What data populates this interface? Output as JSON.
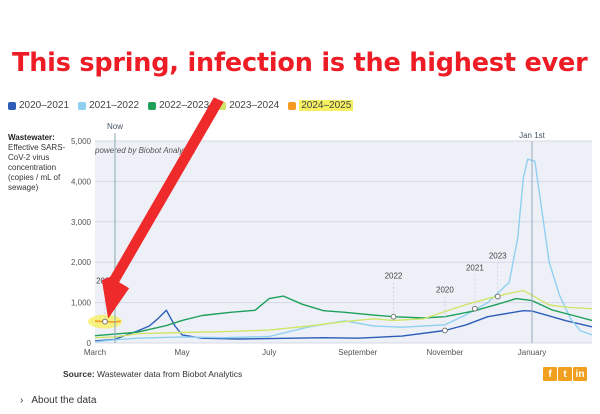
{
  "headline": "This spring, infection is the highest ever",
  "legend": [
    {
      "label": "2020–2021",
      "color": "#2e5db8"
    },
    {
      "label": "2021–2022",
      "color": "#8fd0f0"
    },
    {
      "label": "2022–2023",
      "color": "#1fa05a"
    },
    {
      "label": "2023–2024",
      "color": "#cfe66a"
    },
    {
      "label": "2024–2025",
      "color": "#f59a23"
    }
  ],
  "ylabel_title": "Wastewater:",
  "ylabel_text": "Effective SARS-CoV-2 virus concentration (copies / mL of sewage)",
  "source_label": "Source:",
  "source_text": "Wastewater data from Biobot Analytics",
  "about_link": "About the data",
  "share": {
    "facebook": "f",
    "twitter": "t",
    "linkedin": "in"
  },
  "chart_data": {
    "type": "line",
    "title": "",
    "watermark": "powered by Biobot Analytics",
    "ylabel": "Wastewater: Effective SARS-CoV-2 virus concentration (copies / mL of sewage)",
    "xlabel": "",
    "x_unit": "days since March 1",
    "x_ticks": [
      {
        "x": 0,
        "label": "March"
      },
      {
        "x": 61,
        "label": "May"
      },
      {
        "x": 122,
        "label": "July"
      },
      {
        "x": 184,
        "label": "September"
      },
      {
        "x": 245,
        "label": "November"
      },
      {
        "x": 306,
        "label": "January"
      }
    ],
    "ylim": [
      0,
      5000
    ],
    "y_ticks": [
      0,
      1000,
      2000,
      3000,
      4000,
      5000
    ],
    "xlim": [
      0,
      348
    ],
    "grid": true,
    "markers": [
      {
        "label": "Now",
        "x": 14
      },
      {
        "label": "Jan 1st",
        "x": 306
      }
    ],
    "year_labels": [
      {
        "label": "2024",
        "x": 7,
        "y": 530
      },
      {
        "label": "2022",
        "x": 209,
        "y": 650
      },
      {
        "label": "2020",
        "x": 245,
        "y": 310
      },
      {
        "label": "2021",
        "x": 266,
        "y": 850
      },
      {
        "label": "2023",
        "x": 282,
        "y": 1150
      }
    ],
    "series": [
      {
        "name": "2020–2021",
        "color": "#2e5db8",
        "points": [
          [
            0,
            50
          ],
          [
            14,
            90
          ],
          [
            22,
            200
          ],
          [
            30,
            300
          ],
          [
            38,
            420
          ],
          [
            44,
            600
          ],
          [
            50,
            810
          ],
          [
            56,
            420
          ],
          [
            61,
            200
          ],
          [
            75,
            120
          ],
          [
            100,
            100
          ],
          [
            122,
            110
          ],
          [
            160,
            130
          ],
          [
            184,
            120
          ],
          [
            215,
            170
          ],
          [
            245,
            310
          ],
          [
            260,
            450
          ],
          [
            275,
            650
          ],
          [
            290,
            740
          ],
          [
            300,
            800
          ],
          [
            306,
            790
          ],
          [
            315,
            700
          ],
          [
            330,
            550
          ],
          [
            348,
            400
          ]
        ]
      },
      {
        "name": "2021–2022",
        "color": "#8fd0f0",
        "points": [
          [
            0,
            30
          ],
          [
            14,
            80
          ],
          [
            30,
            120
          ],
          [
            61,
            150
          ],
          [
            90,
            130
          ],
          [
            122,
            160
          ],
          [
            150,
            400
          ],
          [
            175,
            550
          ],
          [
            195,
            420
          ],
          [
            215,
            390
          ],
          [
            245,
            450
          ],
          [
            260,
            700
          ],
          [
            275,
            1000
          ],
          [
            290,
            1500
          ],
          [
            296,
            2600
          ],
          [
            300,
            4100
          ],
          [
            303,
            4550
          ],
          [
            308,
            4500
          ],
          [
            312,
            3500
          ],
          [
            318,
            2000
          ],
          [
            325,
            1200
          ],
          [
            333,
            600
          ],
          [
            340,
            300
          ],
          [
            348,
            200
          ]
        ]
      },
      {
        "name": "2022–2023",
        "color": "#1fa05a",
        "points": [
          [
            0,
            180
          ],
          [
            14,
            220
          ],
          [
            30,
            270
          ],
          [
            50,
            430
          ],
          [
            61,
            560
          ],
          [
            75,
            680
          ],
          [
            95,
            760
          ],
          [
            112,
            810
          ],
          [
            122,
            1100
          ],
          [
            132,
            1160
          ],
          [
            145,
            960
          ],
          [
            160,
            800
          ],
          [
            175,
            760
          ],
          [
            195,
            690
          ],
          [
            209,
            650
          ],
          [
            230,
            620
          ],
          [
            245,
            650
          ],
          [
            265,
            790
          ],
          [
            282,
            960
          ],
          [
            295,
            1100
          ],
          [
            306,
            1050
          ],
          [
            320,
            820
          ],
          [
            335,
            680
          ],
          [
            348,
            560
          ]
        ]
      },
      {
        "name": "2023–2024",
        "color": "#cfe66a",
        "points": [
          [
            0,
            130
          ],
          [
            14,
            150
          ],
          [
            30,
            230
          ],
          [
            61,
            260
          ],
          [
            90,
            280
          ],
          [
            122,
            320
          ],
          [
            150,
            420
          ],
          [
            175,
            530
          ],
          [
            195,
            600
          ],
          [
            209,
            560
          ],
          [
            230,
            600
          ],
          [
            245,
            780
          ],
          [
            260,
            950
          ],
          [
            275,
            1100
          ],
          [
            290,
            1230
          ],
          [
            300,
            1300
          ],
          [
            306,
            1180
          ],
          [
            318,
            940
          ],
          [
            332,
            880
          ],
          [
            348,
            850
          ]
        ]
      },
      {
        "name": "2024–2025",
        "color": "#f59a23",
        "points": [
          [
            0,
            540
          ],
          [
            7,
            530
          ],
          [
            14,
            520
          ],
          [
            18,
            540
          ]
        ]
      }
    ]
  }
}
